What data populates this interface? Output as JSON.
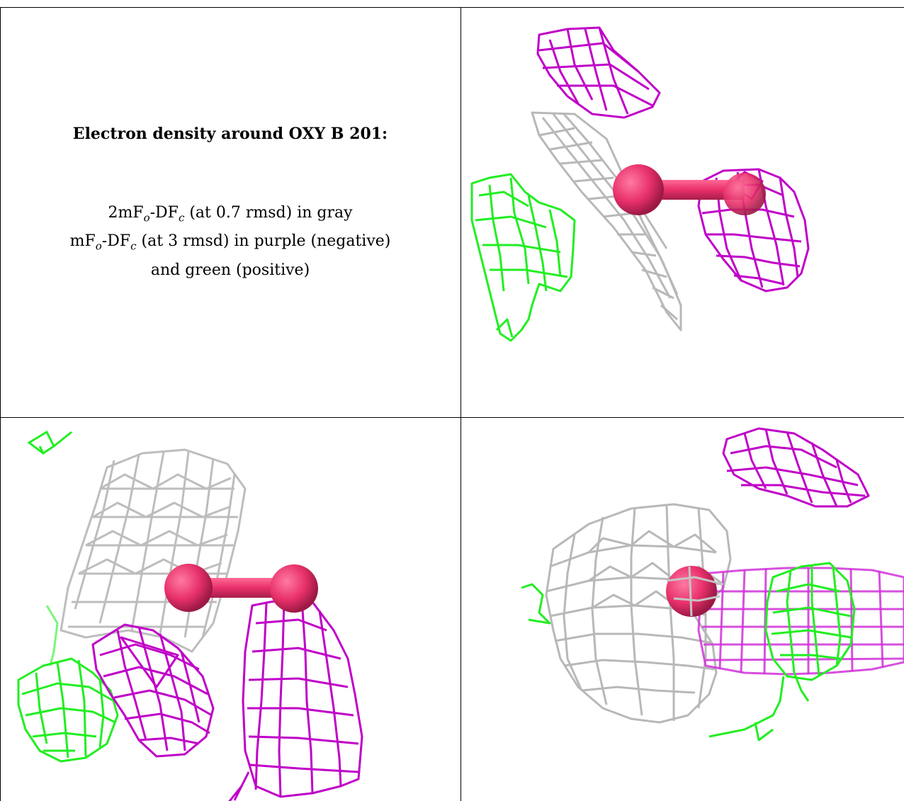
{
  "caption": {
    "title": "Electron density around OXY B 201:",
    "line1": {
      "prefix": "2mF",
      "sub1": "o",
      "mid": "-DF",
      "sub2": "c",
      "suffix": " (at 0.7 rmsd) in gray"
    },
    "line2": {
      "prefix": "mF",
      "sub1": "o",
      "mid": "-DF",
      "sub2": "c",
      "suffix": " (at 3 rmsd) in purple (negative)"
    },
    "line3": "and green (positive)"
  },
  "colors": {
    "gray_mesh": "#b8b8b8",
    "purple_mesh": "#c000c8",
    "green_mesh": "#22ee22",
    "atom": "#e8306a",
    "border": "#000000"
  }
}
